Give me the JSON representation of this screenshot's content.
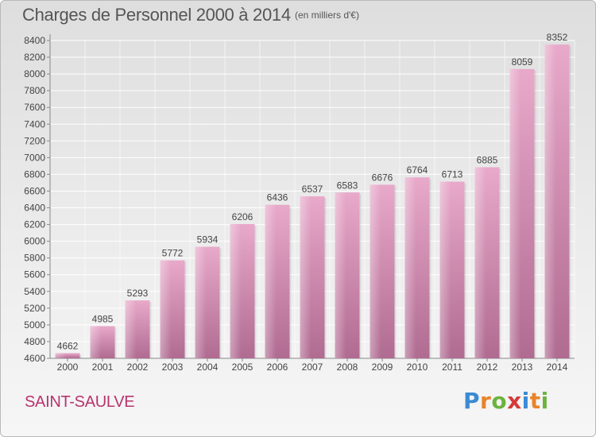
{
  "header": {
    "title": "Charges de Personnel 2000 à 2014",
    "subtitle": "(en milliers d'€)"
  },
  "footer": {
    "commune": "SAINT-SAULVE",
    "logo_letters": [
      "P",
      "r",
      "o",
      "x",
      "i",
      "t",
      "i"
    ],
    "logo_colors": [
      "#3a8ad4",
      "#e9842a",
      "#6cb33f",
      "#d63a3a",
      "#3a8ad4",
      "#e9842a",
      "#6cb33f"
    ]
  },
  "chart_data": {
    "type": "bar",
    "categories": [
      "2000",
      "2001",
      "2002",
      "2003",
      "2004",
      "2005",
      "2006",
      "2007",
      "2008",
      "2009",
      "2010",
      "2011",
      "2012",
      "2013",
      "2014"
    ],
    "values": [
      4662,
      4985,
      5293,
      5772,
      5934,
      6206,
      6436,
      6537,
      6583,
      6676,
      6764,
      6713,
      6885,
      8059,
      8352
    ],
    "ylim": [
      4600,
      8400
    ],
    "yticks": [
      4600,
      4800,
      5000,
      5200,
      5400,
      5600,
      5800,
      6000,
      6200,
      6400,
      6600,
      6800,
      7000,
      7200,
      7400,
      7600,
      7800,
      8000,
      8200,
      8400
    ],
    "grid": true,
    "bar_color": "#d98bb3",
    "title": "Charges de Personnel 2000 à 2014",
    "xlabel": "",
    "ylabel": ""
  }
}
